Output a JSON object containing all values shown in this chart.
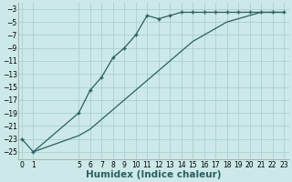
{
  "xlabel": "Humidex (Indice chaleur)",
  "bg_color": "#cce8e8",
  "grid_color": "#aacfcf",
  "line_color": "#2a6060",
  "upper_x": [
    0,
    1,
    5,
    6,
    7,
    8,
    9,
    10,
    11,
    12,
    13,
    14,
    15,
    16,
    17,
    18,
    19,
    20,
    21,
    22,
    23
  ],
  "upper_y": [
    -23,
    -25,
    -19,
    -15.5,
    -13.5,
    -10.5,
    -9,
    -7,
    -4,
    -4.5,
    -4,
    -3.5,
    -3.5,
    -3.5,
    -3.5,
    -3.5,
    -3.5,
    -3.5,
    -3.5,
    -3.5,
    -3.5
  ],
  "lower_x": [
    1,
    5,
    6,
    7,
    8,
    9,
    10,
    11,
    12,
    13,
    14,
    15,
    16,
    17,
    18,
    19,
    20,
    21,
    22,
    23
  ],
  "lower_y": [
    -25,
    -22.5,
    -21.5,
    -20,
    -18.5,
    -17,
    -15.5,
    -14,
    -12.5,
    -11,
    -9.5,
    -8,
    -7,
    -6,
    -5,
    -4.5,
    -4,
    -3.5,
    -3.5,
    -3.5
  ],
  "xticks": [
    0,
    1,
    5,
    6,
    7,
    8,
    9,
    10,
    11,
    12,
    13,
    14,
    15,
    16,
    17,
    18,
    19,
    20,
    21,
    22,
    23
  ],
  "yticks": [
    -3,
    -5,
    -7,
    -9,
    -11,
    -13,
    -15,
    -17,
    -19,
    -21,
    -23,
    -25
  ],
  "xlim": [
    -0.3,
    23.5
  ],
  "ylim": [
    -26.2,
    -2.0
  ],
  "marker": "+",
  "markersize": 3.5,
  "markeredgewidth": 1.0,
  "linewidth": 0.9,
  "tick_fontsize": 5.5,
  "label_fontsize": 7.5
}
